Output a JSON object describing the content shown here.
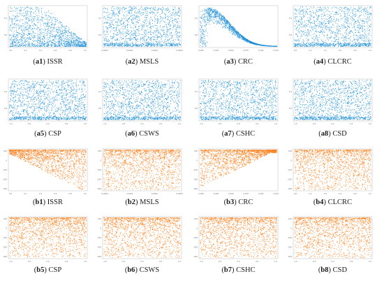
{
  "colors": {
    "a": "#1f8fd8",
    "b": "#ff7f1a",
    "frame": "#c8c8c8"
  },
  "chart_data": [
    {
      "type": "scatter",
      "label": "a1",
      "name": "ISSR",
      "row": "a",
      "xlim": [
        0,
        1
      ],
      "x_ticks": [
        "0.0",
        "0.2",
        "0.4",
        "0.6",
        "0.8",
        "1.0"
      ],
      "ylim": [
        0,
        1
      ],
      "y_ticks": [
        "0.4",
        "0.8"
      ],
      "shape": "decreasing_upper_bound",
      "points": 1500
    },
    {
      "type": "scatter",
      "label": "a2",
      "name": "MSLS",
      "row": "a",
      "xlim": [
        0,
        0.0006
      ],
      "x_ticks": [
        "0.0000",
        "0.0002",
        "0.0004",
        "0.0006"
      ],
      "ylim": [
        0,
        1
      ],
      "y_ticks": [
        "0.4",
        "0.8"
      ],
      "shape": "uniform",
      "points": 1500
    },
    {
      "type": "scatter",
      "label": "a3",
      "name": "CRC",
      "row": "a",
      "xlim": [
        0,
        0.14
      ],
      "x_ticks": [
        "0.000",
        "0.025",
        "0.050",
        "0.075",
        "0.100",
        "0.125"
      ],
      "ylim": [
        0,
        1
      ],
      "y_ticks": [
        "0.4",
        "0.8"
      ],
      "shape": "peak_decay",
      "points": 1500
    },
    {
      "type": "scatter",
      "label": "a4",
      "name": "CLCRC",
      "row": "a",
      "xlim": [
        0,
        1
      ],
      "x_ticks": [
        "0.0",
        "0.2",
        "0.4",
        "0.6",
        "0.8",
        "1.0"
      ],
      "ylim": [
        0,
        1
      ],
      "y_ticks": [
        "0.4",
        "0.8"
      ],
      "shape": "uniform",
      "points": 1500
    },
    {
      "type": "scatter",
      "label": "a5",
      "name": "CSP",
      "row": "a",
      "xlim": [
        -1,
        1
      ],
      "x_ticks": [
        "-1.0",
        "-0.5",
        "0.0",
        "0.5",
        "1.0"
      ],
      "ylim": [
        0,
        1
      ],
      "y_ticks": [
        "0.4",
        "0.8"
      ],
      "shape": "uniform",
      "points": 1500
    },
    {
      "type": "scatter",
      "label": "a6",
      "name": "CSWS",
      "row": "a",
      "xlim": [
        -1,
        1
      ],
      "x_ticks": [
        "-1.0",
        "-0.5",
        "0.0",
        "0.5",
        "1.0"
      ],
      "ylim": [
        0,
        1
      ],
      "y_ticks": [
        "0.4",
        "0.8"
      ],
      "shape": "uniform",
      "points": 1500
    },
    {
      "type": "scatter",
      "label": "a7",
      "name": "CSHC",
      "row": "a",
      "xlim": [
        -1,
        1
      ],
      "x_ticks": [
        "-1.0",
        "-0.5",
        "0.0",
        "0.5",
        "1.0"
      ],
      "ylim": [
        0,
        1
      ],
      "y_ticks": [
        "0.4",
        "0.8"
      ],
      "shape": "uniform",
      "points": 1500
    },
    {
      "type": "scatter",
      "label": "a8",
      "name": "CSD",
      "row": "a",
      "xlim": [
        -1,
        1
      ],
      "x_ticks": [
        "-1.0",
        "-0.5",
        "0.0",
        "0.5",
        "1.0"
      ],
      "ylim": [
        0,
        1
      ],
      "y_ticks": [
        "0.4",
        "0.8"
      ],
      "shape": "uniform",
      "points": 1500
    },
    {
      "type": "scatter",
      "label": "b1",
      "name": "ISSR",
      "row": "b",
      "xlim": [
        0,
        1
      ],
      "x_ticks": [
        "0.0",
        "0.2",
        "0.4",
        "0.6",
        "0.8",
        "1.0"
      ],
      "ylim": [
        -300,
        100
      ],
      "y_ticks": [
        "100",
        "0",
        "-100",
        "-200",
        "-300"
      ],
      "shape": "rising_lower_bound",
      "points": 1500
    },
    {
      "type": "scatter",
      "label": "b2",
      "name": "MSLS",
      "row": "b",
      "xlim": [
        0,
        0.0006
      ],
      "x_ticks": [
        "0.0000",
        "0.0002",
        "0.0004",
        "0.0006"
      ],
      "ylim": [
        -300,
        100
      ],
      "y_ticks": [
        "100",
        "0",
        "-100",
        "-200",
        "-300"
      ],
      "shape": "uniform_dense_top",
      "points": 1500
    },
    {
      "type": "scatter",
      "label": "b3",
      "name": "CRC",
      "row": "b",
      "xlim": [
        0,
        0.14
      ],
      "x_ticks": [
        "0.000",
        "0.025",
        "0.050",
        "0.075",
        "0.100",
        "0.125"
      ],
      "ylim": [
        -300,
        100
      ],
      "y_ticks": [
        "100",
        "0",
        "-100",
        "-200",
        "-300"
      ],
      "shape": "falling_lower_bound",
      "points": 1500
    },
    {
      "type": "scatter",
      "label": "b4",
      "name": "CLCRC",
      "row": "b",
      "xlim": [
        0,
        1
      ],
      "x_ticks": [
        "0.0",
        "0.2",
        "0.4",
        "0.6",
        "0.8",
        "1.0"
      ],
      "ylim": [
        -300,
        100
      ],
      "y_ticks": [
        "100",
        "0",
        "-100",
        "-200",
        "-300"
      ],
      "shape": "uniform_dense_top",
      "points": 1500
    },
    {
      "type": "scatter",
      "label": "b5",
      "name": "CSP",
      "row": "b",
      "xlim": [
        -1,
        1
      ],
      "x_ticks": [
        "-1.0",
        "-0.5",
        "0.0",
        "0.5",
        "1.0"
      ],
      "ylim": [
        -300,
        100
      ],
      "y_ticks": [
        "100",
        "0",
        "-100",
        "-200",
        "-300"
      ],
      "shape": "uniform_dense_top",
      "points": 1500
    },
    {
      "type": "scatter",
      "label": "b6",
      "name": "CSWS",
      "row": "b",
      "xlim": [
        -1,
        1
      ],
      "x_ticks": [
        "-1.0",
        "-0.5",
        "0.0",
        "0.5",
        "1.0"
      ],
      "ylim": [
        -300,
        100
      ],
      "y_ticks": [
        "100",
        "0",
        "-100",
        "-200",
        "-300"
      ],
      "shape": "uniform_dense_top",
      "points": 1500
    },
    {
      "type": "scatter",
      "label": "b7",
      "name": "CSHC",
      "row": "b",
      "xlim": [
        -1,
        1
      ],
      "x_ticks": [
        "-1.0",
        "-0.5",
        "0.0",
        "0.5",
        "1.0"
      ],
      "ylim": [
        -300,
        100
      ],
      "y_ticks": [
        "100",
        "0",
        "-100",
        "-200",
        "-300"
      ],
      "shape": "uniform_dense_top",
      "points": 1500
    },
    {
      "type": "scatter",
      "label": "b8",
      "name": "CSD",
      "row": "b",
      "xlim": [
        -1,
        1
      ],
      "x_ticks": [
        "-1.0",
        "-0.5",
        "0.0",
        "0.5",
        "1.0"
      ],
      "ylim": [
        -300,
        100
      ],
      "y_ticks": [
        "100",
        "0",
        "-100",
        "-200",
        "-300"
      ],
      "shape": "uniform_dense_top",
      "points": 1500
    }
  ]
}
